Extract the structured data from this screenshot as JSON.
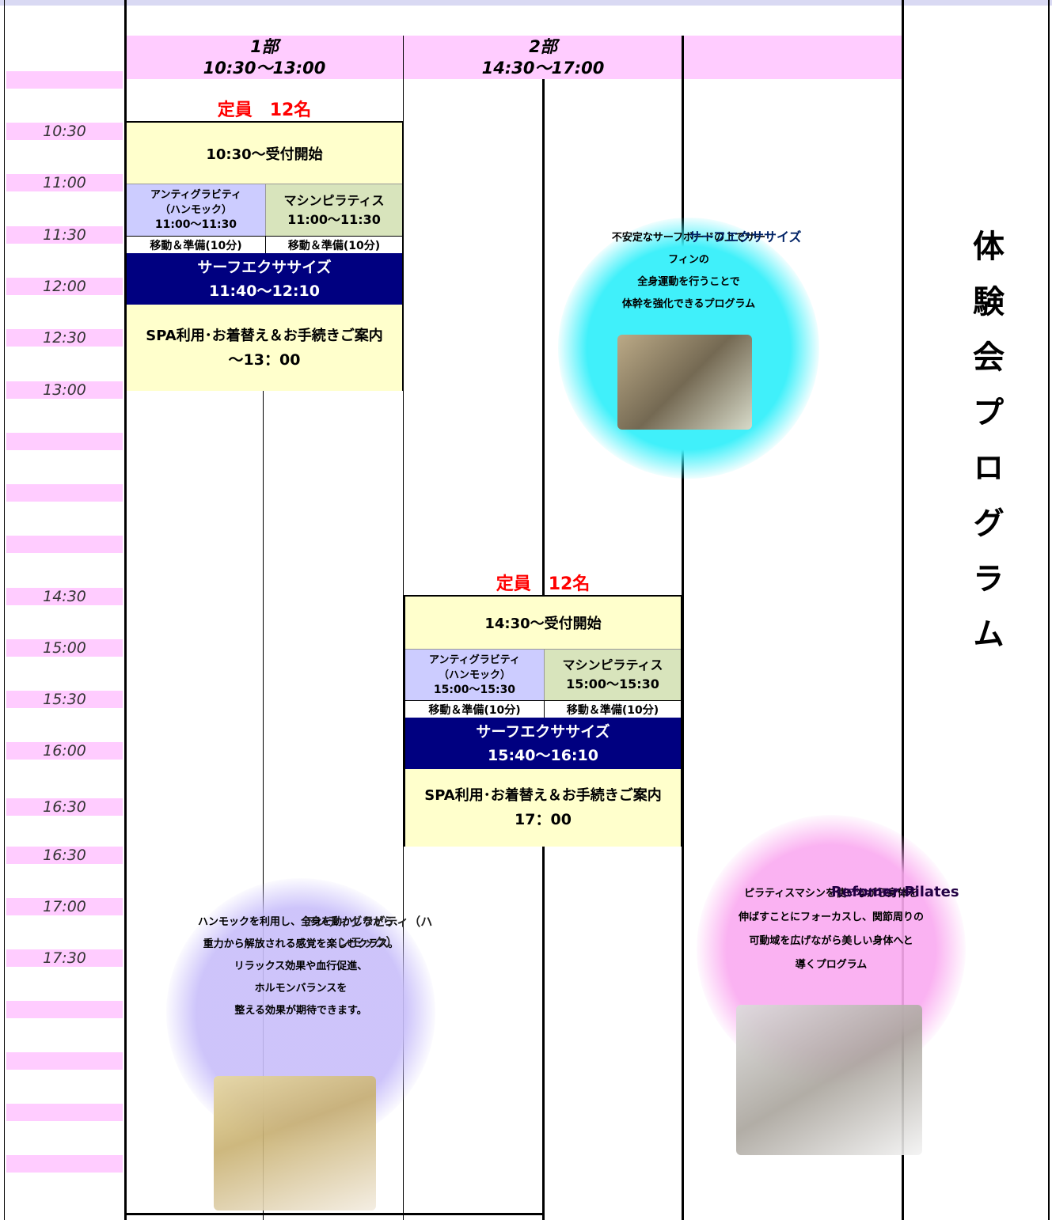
{
  "header": {
    "parts": [
      {
        "label": "1部",
        "time": "10:30～13:00"
      },
      {
        "label": "2部",
        "time": "14:30～17:00"
      }
    ]
  },
  "time_labels": [
    "10:30",
    "11:00",
    "11:30",
    "12:00",
    "12:30",
    "13:00",
    "14:30",
    "15:00",
    "15:30",
    "16:00",
    "16:30",
    "16:30",
    "17:00",
    "17:30"
  ],
  "sessions": [
    {
      "capacity": "定員　12名",
      "reception": "10:30～受付開始",
      "antigravity": {
        "name": "アンティグラビティ",
        "sub": "（ハンモック）",
        "time": "11:00～11:30"
      },
      "pilates": {
        "name": "マシンピラティス",
        "time": "11:00～11:30"
      },
      "move": [
        "移動＆準備(10分)",
        "移動＆準備(10分)"
      ],
      "surf": {
        "name": "サーフエクササイズ",
        "time": "11:40～12:10"
      },
      "spa": {
        "text": "SPA利用･お着替え＆お手続きご案内",
        "time": "～13：00"
      }
    },
    {
      "capacity": "定員　12名",
      "reception": "14:30～受付開始",
      "antigravity": {
        "name": "アンティグラビティ",
        "sub": "（ハンモック）",
        "time": "15:00～15:30"
      },
      "pilates": {
        "name": "マシンピラティス",
        "time": "15:00～15:30"
      },
      "move": [
        "移動＆準備(10分)",
        "移動＆準備(10分)"
      ],
      "surf": {
        "name": "サーフエクササイズ",
        "time": "15:40～16:10"
      },
      "spa": {
        "text": "SPA利用･お着替え＆お手続きご案内",
        "time": "17：00"
      }
    }
  ],
  "features": [
    {
      "title": "サーフエクササイズ",
      "lines": [
        "不安定なサーフボードの上でサー",
        "フィンの",
        "全身運動を行うことで",
        "体幹を強化できるプログラム"
      ]
    },
    {
      "title": "アンティグラビティ（ハンモック）",
      "lines": [
        "ハンモックを利用し、全身を動かしながら、",
        "重力から解放される感覚を楽しむクラス。",
        "リラックス効果や血行促進、",
        "ホルモンバランスを",
        "整える効果が期待できます。"
      ]
    },
    {
      "title": "Refomer Pilates",
      "subtitle": "（マシンピラティス）",
      "lines": [
        "ピラティスマシンを使いながら身体を",
        "伸ばすことにフォーカスし、関節周りの",
        "可動域を広げながら美しい身体へと",
        "導くプログラム"
      ]
    }
  ],
  "side_title": "体験会プログラム"
}
